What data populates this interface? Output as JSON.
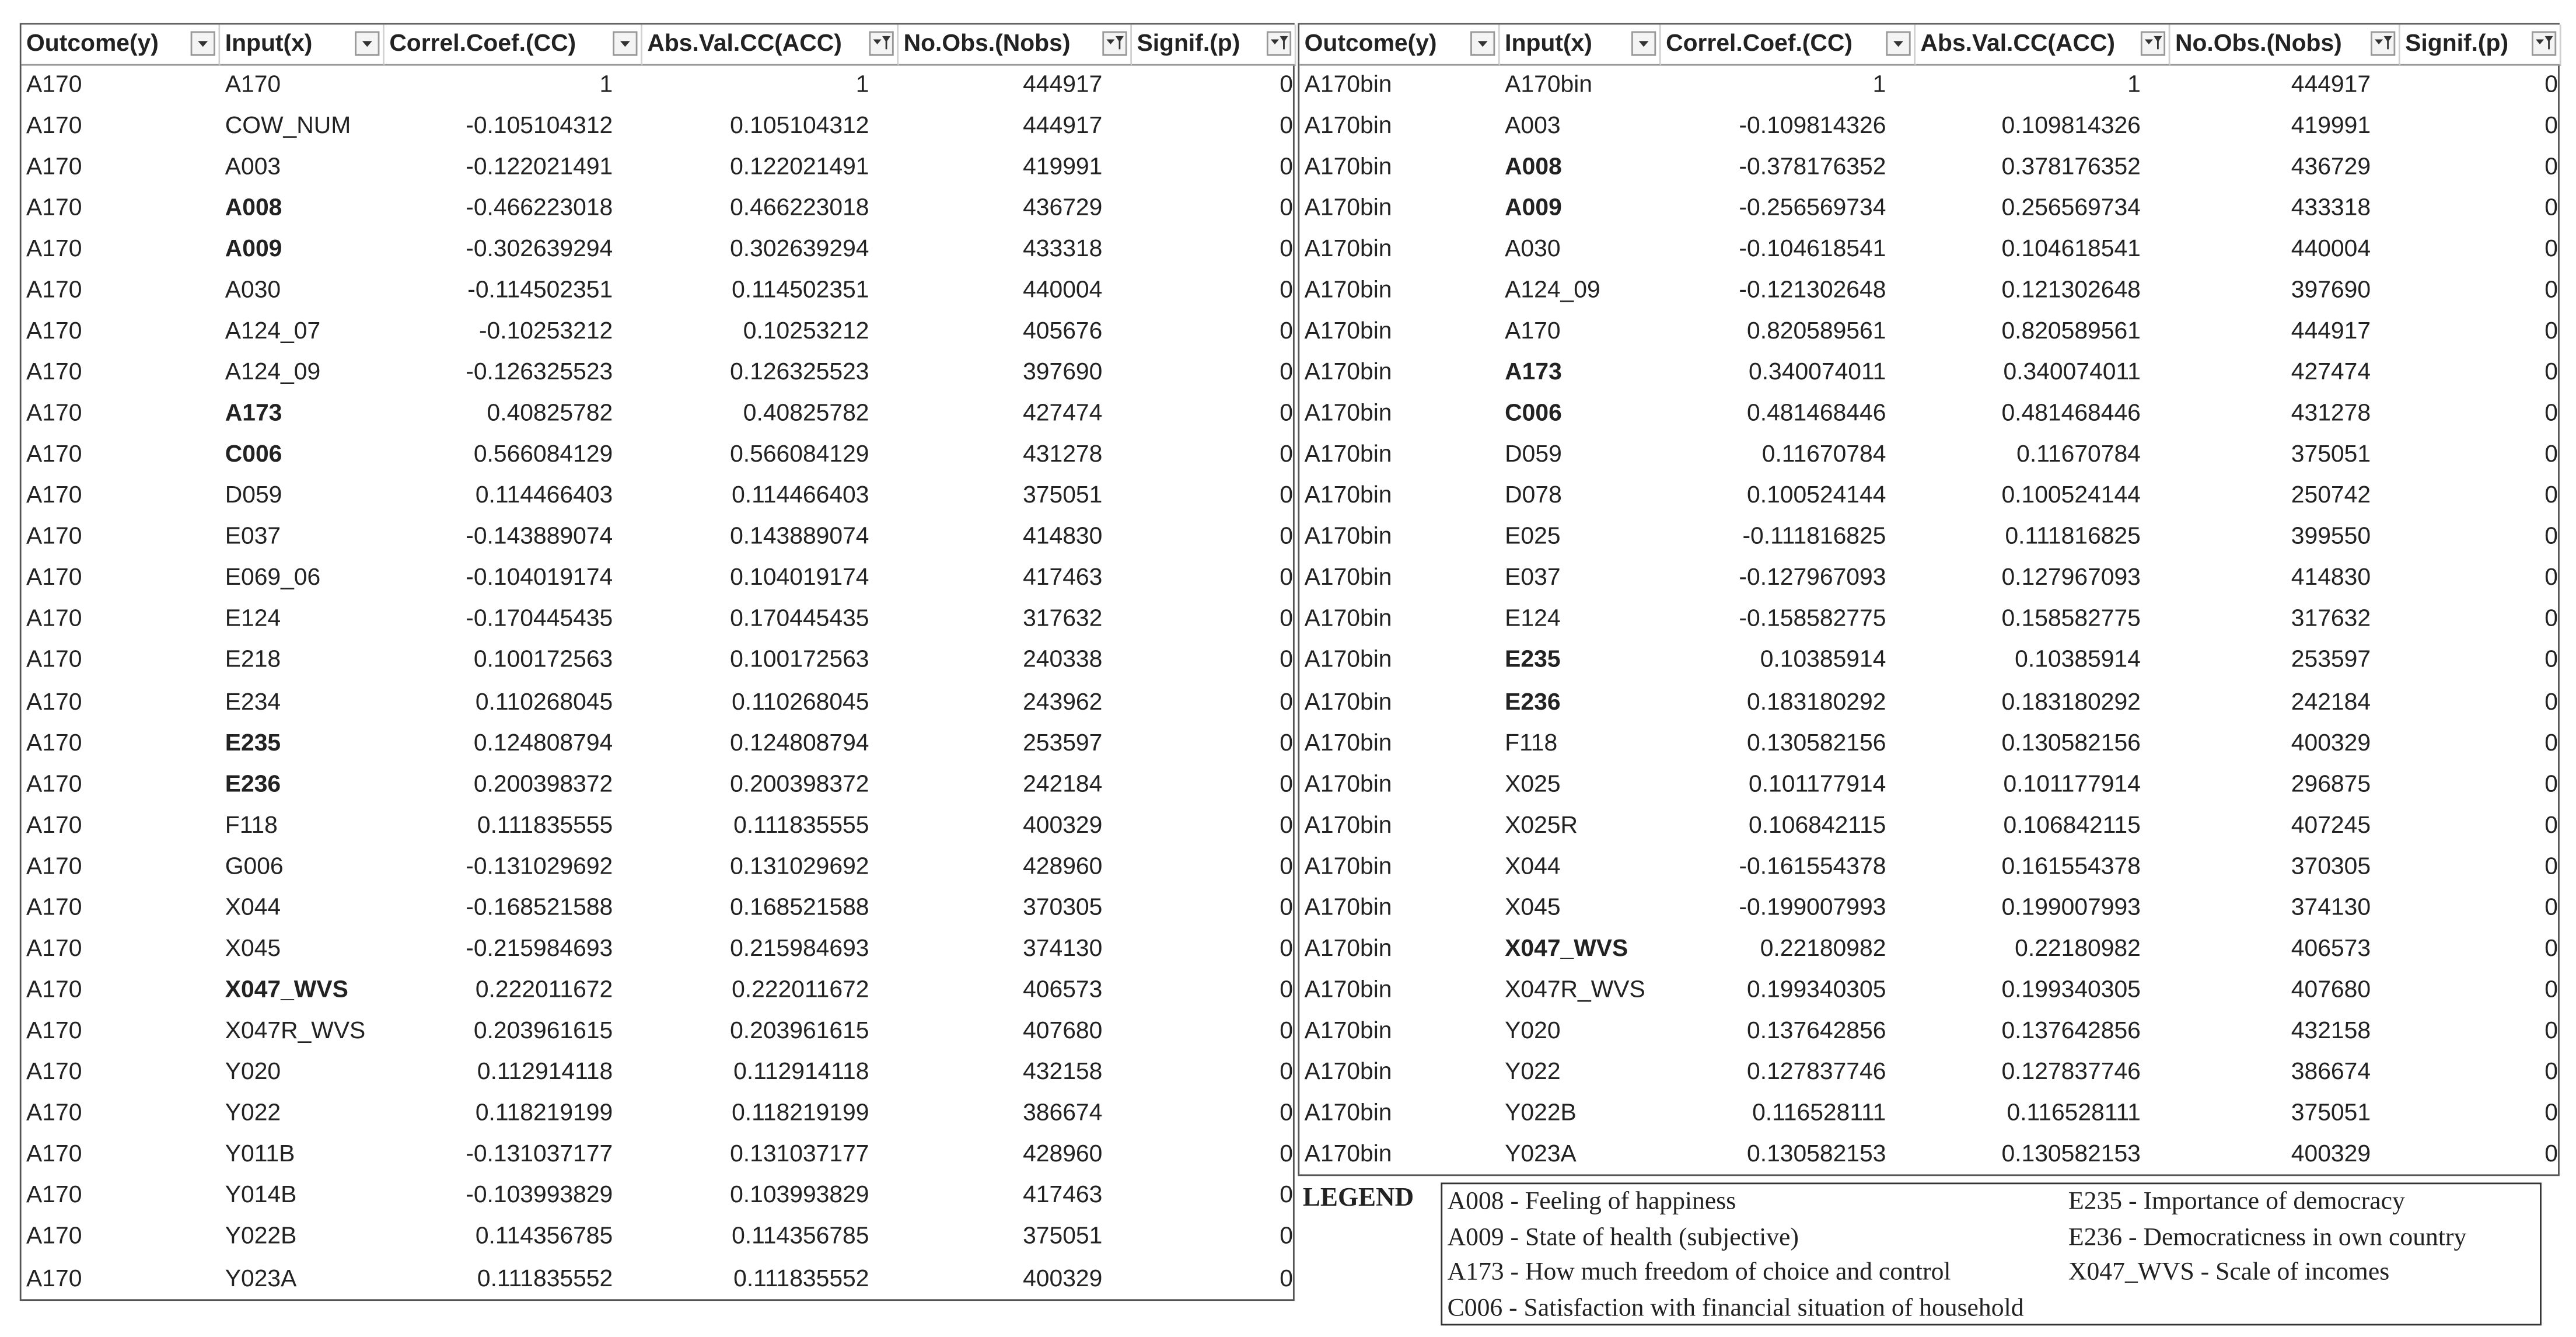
{
  "tables": [
    {
      "headers": [
        "Outcome(y)",
        "Input(x)",
        "Correl.Coef.(CC)",
        "Abs.Val.CC(ACC)",
        "No.Obs.(Nobs)",
        "Signif.(p)"
      ],
      "filter_active": [
        false,
        false,
        false,
        true,
        true,
        true
      ],
      "emphasis_rows": [
        3,
        4,
        8,
        9,
        16,
        17,
        22
      ],
      "rows": [
        [
          "A170",
          "A170",
          "1",
          "1",
          "444917",
          "0"
        ],
        [
          "A170",
          "COW_NUM",
          "-0.105104312",
          "0.105104312",
          "444917",
          "0"
        ],
        [
          "A170",
          "A003",
          "-0.122021491",
          "0.122021491",
          "419991",
          "0"
        ],
        [
          "A170",
          "A008",
          "-0.466223018",
          "0.466223018",
          "436729",
          "0"
        ],
        [
          "A170",
          "A009",
          "-0.302639294",
          "0.302639294",
          "433318",
          "0"
        ],
        [
          "A170",
          "A030",
          "-0.114502351",
          "0.114502351",
          "440004",
          "0"
        ],
        [
          "A170",
          "A124_07",
          "-0.10253212",
          "0.10253212",
          "405676",
          "0"
        ],
        [
          "A170",
          "A124_09",
          "-0.126325523",
          "0.126325523",
          "397690",
          "0"
        ],
        [
          "A170",
          "A173",
          "0.40825782",
          "0.40825782",
          "427474",
          "0"
        ],
        [
          "A170",
          "C006",
          "0.566084129",
          "0.566084129",
          "431278",
          "0"
        ],
        [
          "A170",
          "D059",
          "0.114466403",
          "0.114466403",
          "375051",
          "0"
        ],
        [
          "A170",
          "E037",
          "-0.143889074",
          "0.143889074",
          "414830",
          "0"
        ],
        [
          "A170",
          "E069_06",
          "-0.104019174",
          "0.104019174",
          "417463",
          "0"
        ],
        [
          "A170",
          "E124",
          "-0.170445435",
          "0.170445435",
          "317632",
          "0"
        ],
        [
          "A170",
          "E218",
          "0.100172563",
          "0.100172563",
          "240338",
          "0"
        ],
        [
          "A170",
          "E234",
          "0.110268045",
          "0.110268045",
          "243962",
          "0"
        ],
        [
          "A170",
          "E235",
          "0.124808794",
          "0.124808794",
          "253597",
          "0"
        ],
        [
          "A170",
          "E236",
          "0.200398372",
          "0.200398372",
          "242184",
          "0"
        ],
        [
          "A170",
          "F118",
          "0.111835555",
          "0.111835555",
          "400329",
          "0"
        ],
        [
          "A170",
          "G006",
          "-0.131029692",
          "0.131029692",
          "428960",
          "0"
        ],
        [
          "A170",
          "X044",
          "-0.168521588",
          "0.168521588",
          "370305",
          "0"
        ],
        [
          "A170",
          "X045",
          "-0.215984693",
          "0.215984693",
          "374130",
          "0"
        ],
        [
          "A170",
          "X047_WVS",
          "0.222011672",
          "0.222011672",
          "406573",
          "0"
        ],
        [
          "A170",
          "X047R_WVS",
          "0.203961615",
          "0.203961615",
          "407680",
          "0"
        ],
        [
          "A170",
          "Y020",
          "0.112914118",
          "0.112914118",
          "432158",
          "0"
        ],
        [
          "A170",
          "Y022",
          "0.118219199",
          "0.118219199",
          "386674",
          "0"
        ],
        [
          "A170",
          "Y011B",
          "-0.131037177",
          "0.131037177",
          "428960",
          "0"
        ],
        [
          "A170",
          "Y014B",
          "-0.103993829",
          "0.103993829",
          "417463",
          "0"
        ],
        [
          "A170",
          "Y022B",
          "0.114356785",
          "0.114356785",
          "375051",
          "0"
        ],
        [
          "A170",
          "Y023A",
          "0.111835552",
          "0.111835552",
          "400329",
          "0"
        ]
      ]
    },
    {
      "headers": [
        "Outcome(y)",
        "Input(x)",
        "Correl.Coef.(CC)",
        "Abs.Val.CC(ACC)",
        "No.Obs.(Nobs)",
        "Signif.(p)"
      ],
      "filter_active": [
        false,
        false,
        false,
        true,
        true,
        true
      ],
      "emphasis_rows": [
        2,
        3,
        7,
        8,
        14,
        15,
        21
      ],
      "rows": [
        [
          "A170bin",
          "A170bin",
          "1",
          "1",
          "444917",
          "0"
        ],
        [
          "A170bin",
          "A003",
          "-0.109814326",
          "0.109814326",
          "419991",
          "0"
        ],
        [
          "A170bin",
          "A008",
          "-0.378176352",
          "0.378176352",
          "436729",
          "0"
        ],
        [
          "A170bin",
          "A009",
          "-0.256569734",
          "0.256569734",
          "433318",
          "0"
        ],
        [
          "A170bin",
          "A030",
          "-0.104618541",
          "0.104618541",
          "440004",
          "0"
        ],
        [
          "A170bin",
          "A124_09",
          "-0.121302648",
          "0.121302648",
          "397690",
          "0"
        ],
        [
          "A170bin",
          "A170",
          "0.820589561",
          "0.820589561",
          "444917",
          "0"
        ],
        [
          "A170bin",
          "A173",
          "0.340074011",
          "0.340074011",
          "427474",
          "0"
        ],
        [
          "A170bin",
          "C006",
          "0.481468446",
          "0.481468446",
          "431278",
          "0"
        ],
        [
          "A170bin",
          "D059",
          "0.11670784",
          "0.11670784",
          "375051",
          "0"
        ],
        [
          "A170bin",
          "D078",
          "0.100524144",
          "0.100524144",
          "250742",
          "0"
        ],
        [
          "A170bin",
          "E025",
          "-0.111816825",
          "0.111816825",
          "399550",
          "0"
        ],
        [
          "A170bin",
          "E037",
          "-0.127967093",
          "0.127967093",
          "414830",
          "0"
        ],
        [
          "A170bin",
          "E124",
          "-0.158582775",
          "0.158582775",
          "317632",
          "0"
        ],
        [
          "A170bin",
          "E235",
          "0.10385914",
          "0.10385914",
          "253597",
          "0"
        ],
        [
          "A170bin",
          "E236",
          "0.183180292",
          "0.183180292",
          "242184",
          "0"
        ],
        [
          "A170bin",
          "F118",
          "0.130582156",
          "0.130582156",
          "400329",
          "0"
        ],
        [
          "A170bin",
          "X025",
          "0.101177914",
          "0.101177914",
          "296875",
          "0"
        ],
        [
          "A170bin",
          "X025R",
          "0.106842115",
          "0.106842115",
          "407245",
          "0"
        ],
        [
          "A170bin",
          "X044",
          "-0.161554378",
          "0.161554378",
          "370305",
          "0"
        ],
        [
          "A170bin",
          "X045",
          "-0.199007993",
          "0.199007993",
          "374130",
          "0"
        ],
        [
          "A170bin",
          "X047_WVS",
          "0.22180982",
          "0.22180982",
          "406573",
          "0"
        ],
        [
          "A170bin",
          "X047R_WVS",
          "0.199340305",
          "0.199340305",
          "407680",
          "0"
        ],
        [
          "A170bin",
          "Y020",
          "0.137642856",
          "0.137642856",
          "432158",
          "0"
        ],
        [
          "A170bin",
          "Y022",
          "0.127837746",
          "0.127837746",
          "386674",
          "0"
        ],
        [
          "A170bin",
          "Y022B",
          "0.116528111",
          "0.116528111",
          "375051",
          "0"
        ],
        [
          "A170bin",
          "Y023A",
          "0.130582153",
          "0.130582153",
          "400329",
          "0"
        ]
      ]
    }
  ],
  "legend": {
    "label": "LEGEND",
    "items": [
      "A008 - Feeling of happiness",
      "A009 - State of health (subjective)",
      "A173 - How much freedom of choice and control",
      "C006 - Satisfaction with financial situation of household",
      "E235 - Importance of democracy",
      "E236 - Democraticness in own country",
      "X047_WVS - Scale of incomes"
    ]
  }
}
